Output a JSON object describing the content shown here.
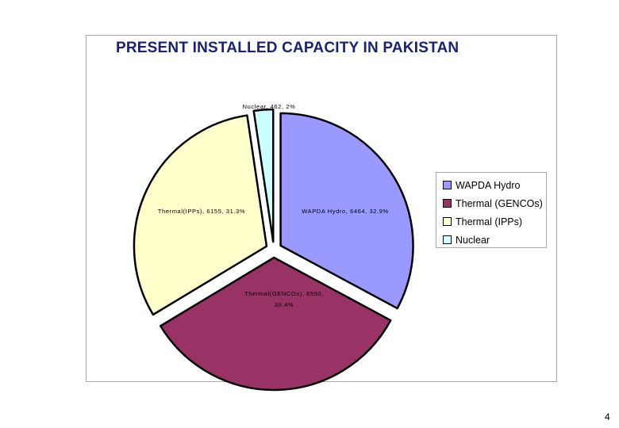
{
  "slide_number": "4",
  "colors": {
    "title": "#1a2276",
    "outline": "#000000"
  },
  "chart_data": {
    "type": "pie",
    "title": "PRESENT  INSTALLED  CAPACITY  IN  PAKISTAN",
    "slices": [
      {
        "name": "WAPDA Hydro",
        "value": 6464,
        "percent": 32.9,
        "color": "#9999ff",
        "data_label": "WAPDA Hydro, 6464, 32.9%",
        "data_label_lines": [
          "WAPDA Hydro, 6464, 32.9%"
        ]
      },
      {
        "name": "Thermal (GENCOs)",
        "value": 6590,
        "percent": 33.4,
        "color": "#993366",
        "data_label": "Thermal(GENCOs), 6590, 33.4%",
        "data_label_lines": [
          "Thermal(GENCOs), 6590,",
          "33.4%"
        ]
      },
      {
        "name": "Thermal (IPPs)",
        "value": 6155,
        "percent": 31.3,
        "color": "#ffffcc",
        "data_label": "Thermal(IPPs), 6155, 31.3%",
        "data_label_lines": [
          "Thermal(IPPs), 6155, 31.3%"
        ]
      },
      {
        "name": "Nuclear",
        "value": 462,
        "percent": 2,
        "color": "#ccffff",
        "data_label": "Nuclear, 462, 2%",
        "data_label_lines": [
          "Nuclear, 462, 2%"
        ]
      }
    ],
    "exploded": true,
    "legend_position": "right"
  }
}
